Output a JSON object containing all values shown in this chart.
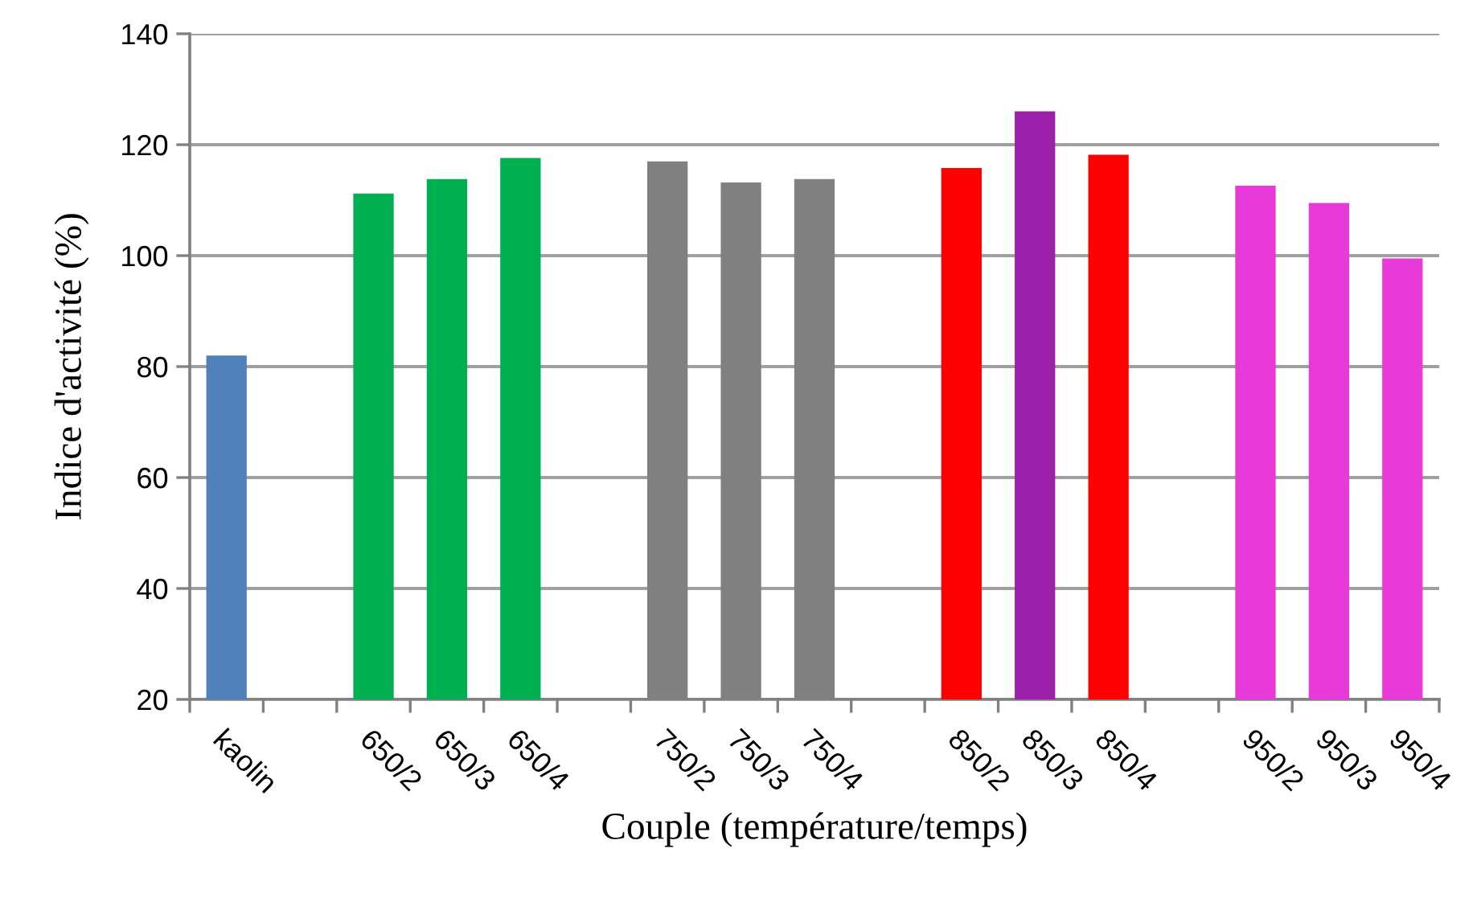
{
  "chart_data": {
    "type": "bar",
    "xlabel": "Couple (température/temps)",
    "ylabel": "Indice d'activité (%)",
    "categories": [
      "kaolin",
      null,
      "650/2",
      "650/3",
      "650/4",
      null,
      "750/2",
      "750/3",
      "750/4",
      null,
      "850/2",
      "850/3",
      "850/4",
      null,
      "950/2",
      "950/3",
      "950/4"
    ],
    "values": [
      82,
      null,
      111.2,
      113.8,
      117.6,
      null,
      117,
      113.2,
      113.8,
      null,
      115.8,
      126,
      118.2,
      null,
      112.6,
      109.5,
      99.5
    ],
    "colors": [
      "#4f81bd",
      "#4f81bd",
      "#00b050",
      "#00b050",
      "#00b050",
      "#4f81bd",
      "#808080",
      "#808080",
      "#808080",
      "#4f81bd",
      "#ff0000",
      "#9b1fa8",
      "#ff0000",
      "#4f81bd",
      "#e83ad8",
      "#e83ad8",
      "#e83ad8"
    ],
    "ylim": [
      20,
      140
    ],
    "yticks": [
      20,
      40,
      60,
      80,
      100,
      120,
      140
    ],
    "grid": "y"
  }
}
